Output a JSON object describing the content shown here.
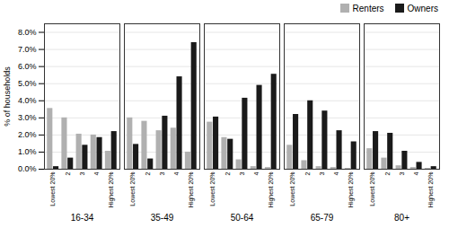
{
  "chart_data": {
    "type": "bar",
    "groups": [
      "16-34",
      "35-49",
      "50-64",
      "65-79",
      "80+"
    ],
    "categories": [
      "Lowest 20%",
      "2",
      "3",
      "4",
      "Highest 20%"
    ],
    "series": [
      {
        "name": "Renters",
        "color": "#b0b0b0",
        "values": [
          [
            3.55,
            3.0,
            2.05,
            2.0,
            1.05
          ],
          [
            3.0,
            2.8,
            2.25,
            2.4,
            1.0
          ],
          [
            2.75,
            1.85,
            0.55,
            0.15,
            0.1
          ],
          [
            1.4,
            0.5,
            0.15,
            0.1,
            0.05
          ],
          [
            1.2,
            0.65,
            0.2,
            0.1,
            0.05
          ]
        ]
      },
      {
        "name": "Owners",
        "color": "#1a1a1a",
        "values": [
          [
            0.15,
            0.65,
            1.4,
            1.85,
            2.2
          ],
          [
            1.45,
            0.6,
            3.1,
            5.4,
            7.4
          ],
          [
            3.05,
            1.75,
            4.15,
            4.9,
            5.55
          ],
          [
            3.2,
            4.0,
            3.4,
            2.25,
            1.6
          ],
          [
            2.2,
            2.1,
            1.05,
            0.4,
            0.15
          ]
        ]
      }
    ],
    "ylabel": "% of households",
    "ylim": [
      0,
      8.5
    ],
    "yticks": [
      {
        "value": 0,
        "label": "0.0%"
      },
      {
        "value": 1,
        "label": "1.0%"
      },
      {
        "value": 2,
        "label": "2.0%"
      },
      {
        "value": 3,
        "label": "3.0%"
      },
      {
        "value": 4,
        "label": "4.0%"
      },
      {
        "value": 5,
        "label": "5.0%"
      },
      {
        "value": 6,
        "label": "6.0%"
      },
      {
        "value": 7,
        "label": "7.0%"
      },
      {
        "value": 8,
        "label": "8.0%"
      }
    ],
    "grid": true,
    "legend": "upper right"
  }
}
